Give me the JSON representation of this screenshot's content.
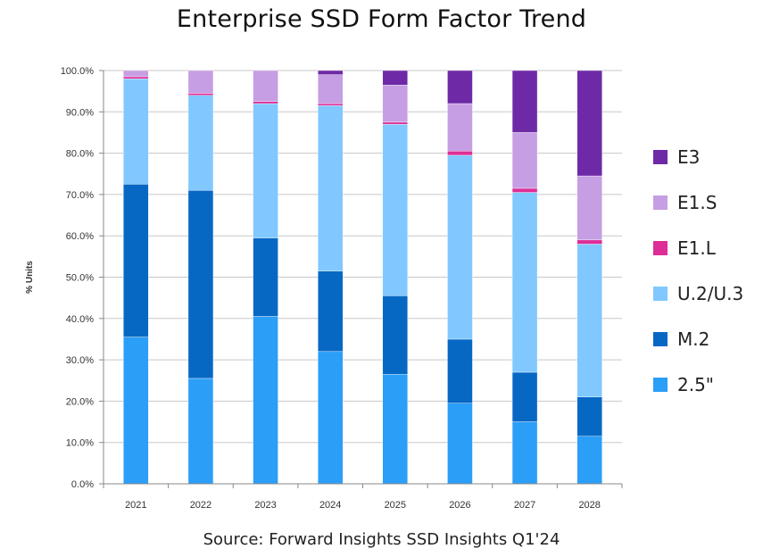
{
  "title": "Enterprise SSD Form Factor Trend",
  "source": "Source: Forward Insights SSD Insights Q1'24",
  "colors": {
    "2.5\"": "#2b9ef8",
    "M.2": "#0768c4",
    "U.2/U.3": "#80c8ff",
    "E1.L": "#dd2d96",
    "E1.S": "#c69ee3",
    "E3": "#6e2aa6"
  },
  "chart_data": {
    "type": "bar",
    "stacked": true,
    "title": "Enterprise SSD Form Factor Trend",
    "xlabel": "",
    "ylabel": "% Units",
    "ylim": [
      0,
      100
    ],
    "y_tick_labels": [
      "0.0%",
      "10.0%",
      "20.0%",
      "30.0%",
      "40.0%",
      "50.0%",
      "60.0%",
      "70.0%",
      "80.0%",
      "90.0%",
      "100.0%"
    ],
    "grid": "horizontal",
    "legend_position": "right",
    "categories": [
      "2021",
      "2022",
      "2023",
      "2024",
      "2025",
      "2026",
      "2027",
      "2028"
    ],
    "series": [
      {
        "name": "2.5\"",
        "values": [
          35.5,
          25.5,
          40.5,
          32,
          26.5,
          19.5,
          15,
          11.5
        ]
      },
      {
        "name": "M.2",
        "values": [
          37,
          45.5,
          19,
          19.5,
          19,
          15.5,
          12,
          9.5
        ]
      },
      {
        "name": "U.2/U.3",
        "values": [
          25.5,
          23,
          32.5,
          40,
          41.5,
          44.5,
          43.5,
          37
        ]
      },
      {
        "name": "E1.L",
        "values": [
          0.5,
          0.5,
          0.5,
          0.5,
          0.5,
          1,
          1,
          1
        ]
      },
      {
        "name": "E1.S",
        "values": [
          1.5,
          5.5,
          7.5,
          7,
          9,
          11.5,
          13.5,
          15.5
        ]
      },
      {
        "name": "E3",
        "values": [
          0,
          0,
          0,
          1,
          3.5,
          8,
          15,
          25.5
        ]
      }
    ],
    "legend_order": [
      "E3",
      "E1.S",
      "E1.L",
      "U.2/U.3",
      "M.2",
      "2.5\""
    ]
  }
}
